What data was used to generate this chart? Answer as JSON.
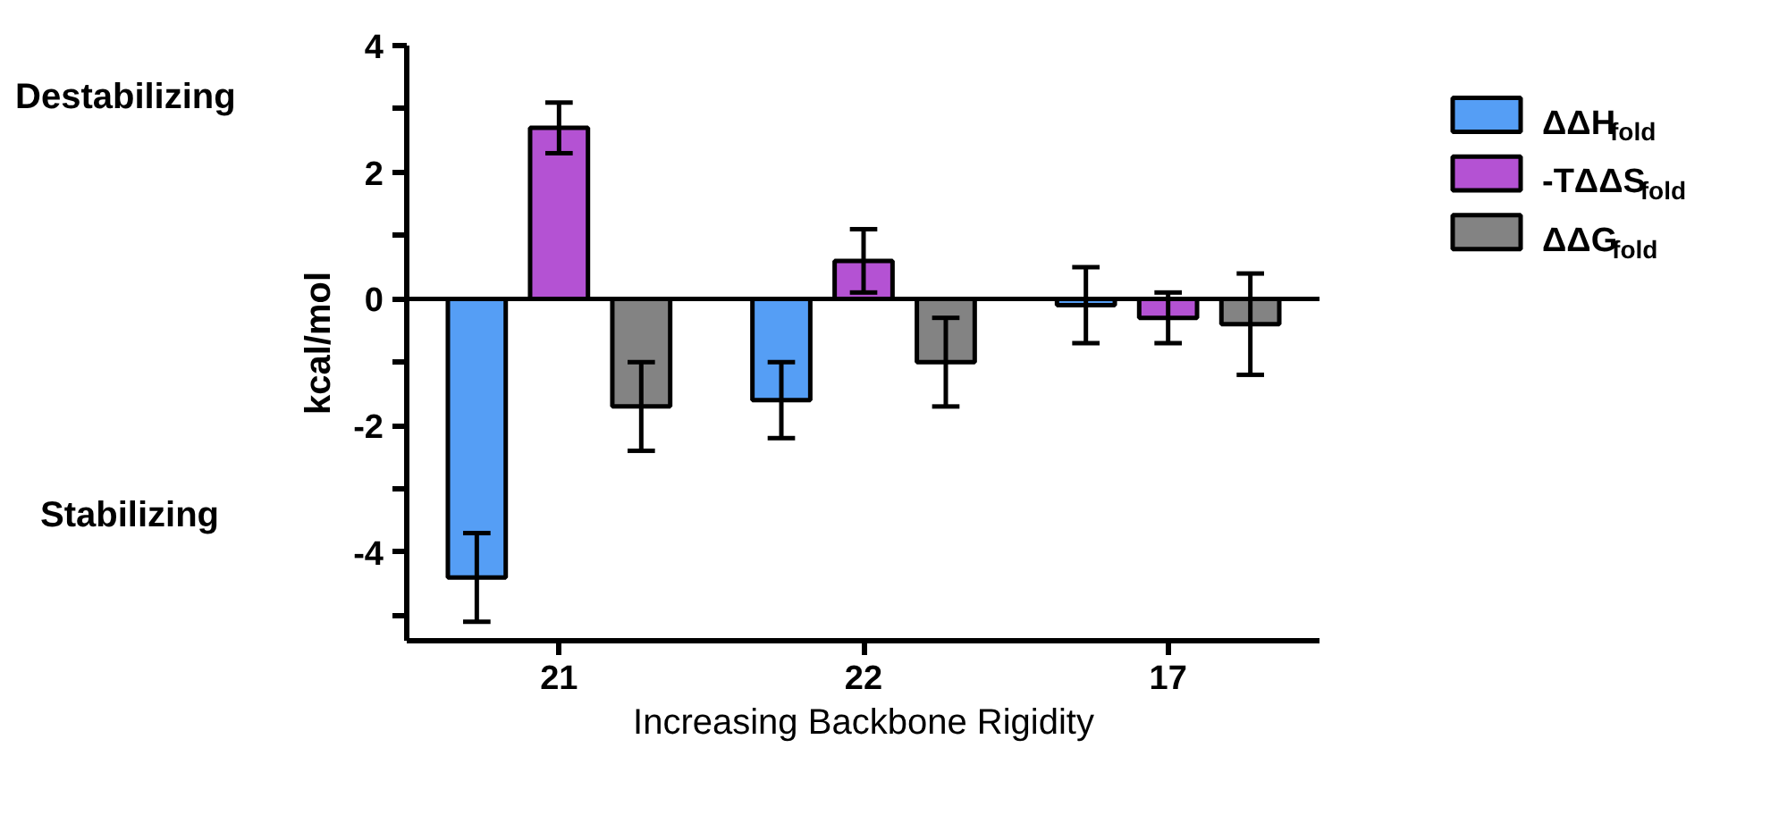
{
  "chart_data": {
    "type": "bar",
    "categories": [
      "21",
      "22",
      "17"
    ],
    "series": [
      {
        "name": "ΔΔH$_{fold}$",
        "color": "#559ef5",
        "values": [
          -4.4,
          -1.6,
          -0.1
        ],
        "errors": [
          0.7,
          0.6,
          0.6
        ]
      },
      {
        "name": "-TΔΔS$_{fold}$",
        "color": "#b452d3",
        "values": [
          2.7,
          0.6,
          -0.3
        ],
        "errors": [
          0.4,
          0.5,
          0.4
        ]
      },
      {
        "name": "ΔΔG$_{fold}$",
        "color": "#838383",
        "values": [
          -1.7,
          -1.0,
          -0.4
        ],
        "errors": [
          0.7,
          0.7,
          0.8
        ]
      }
    ],
    "ylim": [
      -5.4,
      4
    ],
    "yticks": [
      -4,
      -2,
      0,
      2,
      4,
      {
        "value": -5,
        "label": null
      },
      {
        "value": -3,
        "label": null
      },
      {
        "value": -1,
        "label": null
      },
      {
        "value": 1,
        "label": null
      },
      {
        "value": 3,
        "label": null
      }
    ],
    "ylabel": "kcal/mol",
    "xlabel": "Increasing Backbone Rigidity",
    "ref_lines": [
      {
        "axis": "y",
        "value": 0,
        "color": "#000000"
      }
    ],
    "annotations": [
      "Destabilizing",
      "Stabilizing"
    ],
    "grid": false,
    "legend": "top right"
  }
}
